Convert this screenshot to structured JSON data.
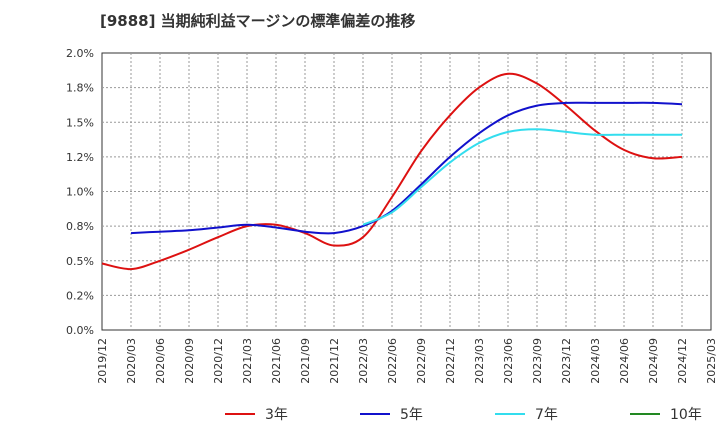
{
  "chart_data": {
    "type": "line",
    "title": "[9888]  当期純利益マージンの標準偏差の推移",
    "x": [
      "2019/12",
      "2020/03",
      "2020/06",
      "2020/09",
      "2020/12",
      "2021/03",
      "2021/06",
      "2021/09",
      "2021/12",
      "2022/03",
      "2022/06",
      "2022/09",
      "2022/12",
      "2023/03",
      "2023/06",
      "2023/09",
      "2023/12",
      "2024/03",
      "2024/06",
      "2024/09",
      "2024/12",
      "2025/03"
    ],
    "y_ticks": [
      "0.0%",
      "0.2%",
      "0.5%",
      "0.8%",
      "1.0%",
      "1.2%",
      "1.5%",
      "1.8%",
      "2.0%"
    ],
    "ylim": [
      0,
      2.0
    ],
    "grid": true,
    "legend_position": "bottom",
    "series": [
      {
        "name": "3年",
        "color": "#dd1111",
        "values": [
          0.48,
          0.44,
          0.5,
          0.58,
          0.67,
          0.75,
          0.76,
          0.7,
          0.61,
          0.67,
          0.96,
          1.29,
          1.55,
          1.75,
          1.85,
          1.78,
          1.62,
          1.44,
          1.3,
          1.24,
          1.25,
          null
        ]
      },
      {
        "name": "5年",
        "color": "#1111cc",
        "values": [
          null,
          0.7,
          0.71,
          0.72,
          0.74,
          0.76,
          0.74,
          0.71,
          0.7,
          0.75,
          0.86,
          1.05,
          1.25,
          1.42,
          1.55,
          1.62,
          1.64,
          1.64,
          1.64,
          1.64,
          1.63,
          null
        ]
      },
      {
        "name": "7年",
        "color": "#33ddee",
        "values": [
          null,
          null,
          null,
          null,
          null,
          null,
          null,
          null,
          null,
          0.76,
          0.85,
          1.03,
          1.21,
          1.35,
          1.43,
          1.45,
          1.43,
          1.41,
          1.41,
          1.41,
          1.41,
          null
        ]
      },
      {
        "name": "10年",
        "color": "#228822",
        "values": [
          null,
          null,
          null,
          null,
          null,
          null,
          null,
          null,
          null,
          null,
          null,
          null,
          null,
          null,
          null,
          null,
          null,
          null,
          null,
          null,
          null,
          null
        ]
      }
    ]
  }
}
